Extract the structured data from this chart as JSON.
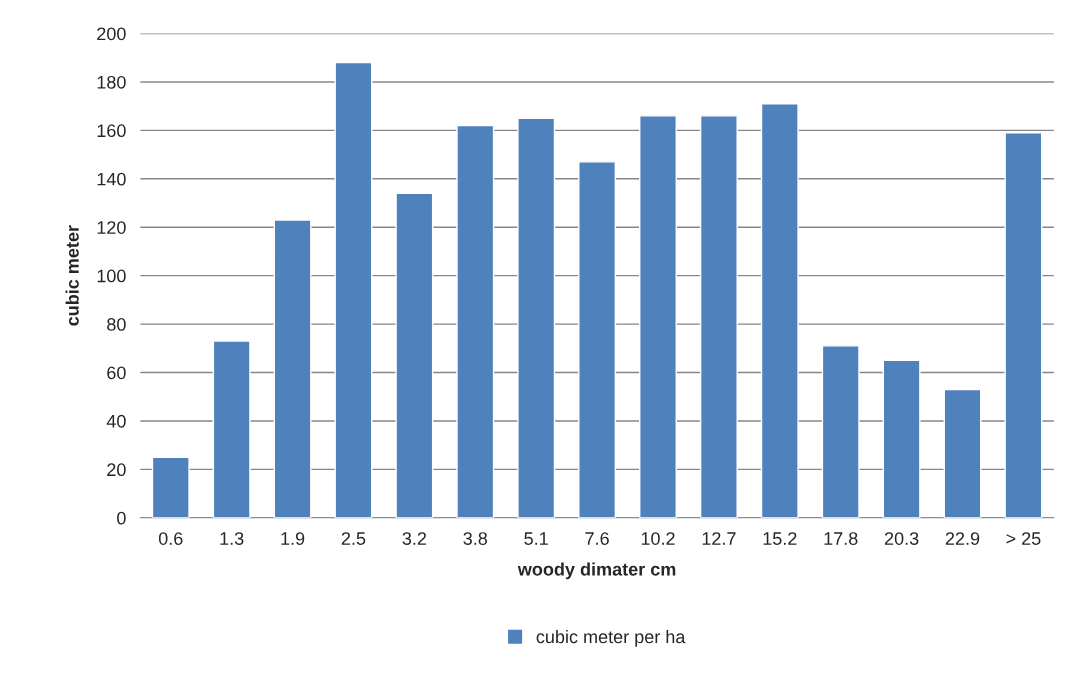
{
  "chart_data": {
    "type": "bar",
    "xlabel": "woody dimater cm",
    "ylabel": "cubic meter",
    "categories": [
      "0.6",
      "1.3",
      "1.9",
      "2.5",
      "3.2",
      "3.8",
      "5.1",
      "7.6",
      "10.2",
      "12.7",
      "15.2",
      "17.8",
      "20.3",
      "22.9",
      "> 25"
    ],
    "series": [
      {
        "name": "cubic meter per ha",
        "color": "#4f81bd",
        "values": [
          25,
          73,
          123,
          188,
          134,
          162,
          165,
          147,
          166,
          166,
          171,
          71,
          65,
          53,
          159
        ]
      }
    ],
    "ylim": [
      0,
      200
    ],
    "yticks": [
      0,
      20,
      40,
      60,
      80,
      100,
      120,
      140,
      160,
      180,
      200
    ],
    "grid": "y",
    "legend": "bottom"
  }
}
